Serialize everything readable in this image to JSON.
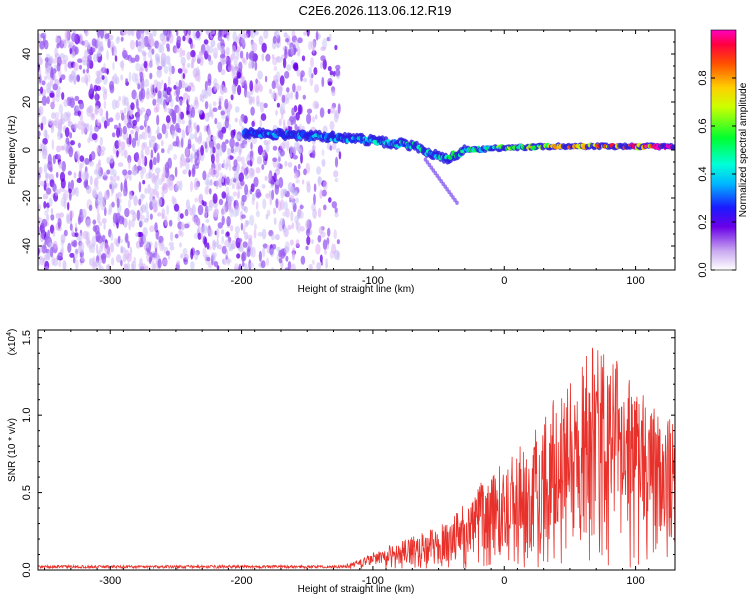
{
  "chart_data": [
    {
      "type": "heatmap",
      "title": "C2E6.2026.113.06.12.R19",
      "xlabel": "Height of straight line (km)",
      "ylabel": "Frequency (Hz)",
      "xlim": [
        -355,
        130
      ],
      "ylim": [
        -50,
        50
      ],
      "xticks": [
        -300,
        -200,
        -100,
        0,
        100
      ],
      "yticks": [
        -40,
        -20,
        0,
        20,
        40
      ],
      "colorbar": {
        "label": "Normalized spectral amplitude",
        "range": [
          0.0,
          1.0
        ],
        "ticks": [
          "0.0",
          "0.2",
          "0.4",
          "0.6",
          "0.8"
        ]
      },
      "features": [
        {
          "name": "broadband noise region",
          "x_range": [
            -355,
            -125
          ],
          "freq_range": [
            -50,
            50
          ],
          "amplitude": 0.15
        },
        {
          "name": "signal track",
          "points": [
            {
              "x": -195,
              "freq": 7,
              "amplitude": 0.3
            },
            {
              "x": -150,
              "freq": 6,
              "amplitude": 0.35
            },
            {
              "x": -100,
              "freq": 4,
              "amplitude": 0.4
            },
            {
              "x": -70,
              "freq": 2,
              "amplitude": 0.45
            },
            {
              "x": -45,
              "freq": -4,
              "amplitude": 0.45
            },
            {
              "x": -30,
              "freq": 0,
              "amplitude": 0.5
            },
            {
              "x": 0,
              "freq": 1,
              "amplitude": 0.55
            },
            {
              "x": 40,
              "freq": 1.5,
              "amplitude": 0.75
            },
            {
              "x": 80,
              "freq": 1.5,
              "amplitude": 0.85
            },
            {
              "x": 130,
              "freq": 1.5,
              "amplitude": 0.95
            }
          ]
        }
      ]
    },
    {
      "type": "line",
      "title": "",
      "xlabel": "Height of straight line (km)",
      "ylabel": "SNR (10 * v/v)",
      "yscale_label": "(x10",
      "yscale_exp": "4",
      "yscale_close": ")",
      "xlim": [
        -355,
        130
      ],
      "ylim": [
        0.0,
        1.55
      ],
      "xticks": [
        -300,
        -200,
        -100,
        0,
        100
      ],
      "yticks": [
        "0.0",
        "0.5",
        "1.0",
        "1.5"
      ],
      "series": [
        {
          "name": "SNR",
          "color": "#e8312b",
          "envelope": [
            {
              "x": -355,
              "y": 0.02
            },
            {
              "x": -200,
              "y": 0.02
            },
            {
              "x": -120,
              "y": 0.03
            },
            {
              "x": -100,
              "y": 0.1
            },
            {
              "x": -75,
              "y": 0.2
            },
            {
              "x": -60,
              "y": 0.25
            },
            {
              "x": -40,
              "y": 0.35
            },
            {
              "x": -25,
              "y": 0.5
            },
            {
              "x": -10,
              "y": 0.65
            },
            {
              "x": 0,
              "y": 0.72
            },
            {
              "x": 15,
              "y": 0.85
            },
            {
              "x": 30,
              "y": 1.05
            },
            {
              "x": 45,
              "y": 1.3
            },
            {
              "x": 60,
              "y": 1.45
            },
            {
              "x": 75,
              "y": 1.55
            },
            {
              "x": 95,
              "y": 1.3
            },
            {
              "x": 115,
              "y": 1.1
            },
            {
              "x": 130,
              "y": 1.0
            }
          ]
        }
      ]
    }
  ]
}
